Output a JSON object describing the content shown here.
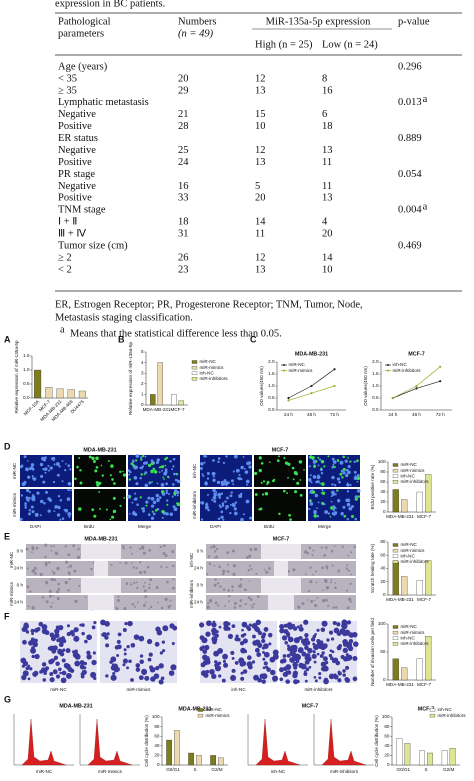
{
  "header": {
    "caption": "expression in BC patients."
  },
  "table": {
    "col1": [
      "Pathological",
      "parameters"
    ],
    "col2": [
      "Numbers",
      "(n = 49)"
    ],
    "group": "MiR-135a-5p expression",
    "high": "High (n = 25)",
    "low": "Low (n = 24)",
    "pvalue": "p-value",
    "rows": [
      {
        "label": "Age (years)",
        "p": "0.296"
      },
      {
        "label": "< 35",
        "numbers": "20",
        "high": "12",
        "low": "8"
      },
      {
        "label": "≥ 35",
        "numbers": "29",
        "high": "13",
        "low": "16"
      },
      {
        "label": "Lymphatic metastasis",
        "p": "0.013",
        "sup": "a"
      },
      {
        "label": "Negative",
        "numbers": "21",
        "high": "15",
        "low": "6"
      },
      {
        "label": "Positive",
        "numbers": "28",
        "high": "10",
        "low": "18"
      },
      {
        "label": "ER status",
        "p": "0.889"
      },
      {
        "label": "Negative",
        "numbers": "25",
        "high": "12",
        "low": "13"
      },
      {
        "label": "Positive",
        "numbers": "24",
        "high": "13",
        "low": "11"
      },
      {
        "label": "PR stage",
        "p": "0.054"
      },
      {
        "label": "Negative",
        "numbers": "16",
        "high": "5",
        "low": "11"
      },
      {
        "label": "Positive",
        "numbers": "33",
        "high": "20",
        "low": "13"
      },
      {
        "label": "TNM stage",
        "p": "0.004",
        "sup": "a"
      },
      {
        "label": "Ⅰ + Ⅱ",
        "numbers": "18",
        "high": "14",
        "low": "4"
      },
      {
        "label": "Ⅲ + Ⅳ",
        "numbers": "31",
        "high": "11",
        "low": "20"
      },
      {
        "label": "Tumor size (cm)",
        "p": "0.469"
      },
      {
        "label": "≥ 2",
        "numbers": "26",
        "high": "12",
        "low": "14"
      },
      {
        "label": "< 2",
        "numbers": "23",
        "high": "13",
        "low": "10"
      }
    ],
    "notes": [
      "ER, Estrogen Receptor; PR, Progesterone Receptor; TNM, Tumor, Node,",
      "Metastasis staging classification."
    ],
    "footnote": {
      "mark": "a",
      "text": "Means that the statistical difference less than 0.05."
    }
  },
  "figure": {
    "letters": [
      "A",
      "B",
      "C",
      "D",
      "E",
      "F",
      "G"
    ],
    "charts": [
      {
        "type": "bar",
        "ylabel": "Relative expression of miR-135a-5p",
        "categories": [
          "MCF-10A",
          "MCF-7",
          "MDA-MB-231",
          "MDA-MB-468",
          "DU4475"
        ],
        "values": [
          1.0,
          0.38,
          0.33,
          0.3,
          0.25
        ],
        "colors": [
          "#7d7d1e",
          "#ecd9b0",
          "#ecd9b0",
          "#ecd9b0",
          "#ecd9b0"
        ],
        "rotated_labels": true,
        "ylim": [
          0,
          1.5
        ],
        "yticks": [
          {
            "value": 0,
            "label": "0.0"
          },
          0.5,
          {
            "value": 1,
            "label": "1.0"
          },
          1.5
        ]
      },
      {
        "type": "bar",
        "ylabel": "Relative expression of miR-135a-5p",
        "categories": [
          "MDA-MB-231",
          "MCF-7"
        ],
        "series": [
          {
            "name": "miR-NC",
            "color": "#7d7d1e",
            "values": [
              1.0,
              null
            ]
          },
          {
            "name": "miR-mimics",
            "color": "#ecd9b0",
            "values": [
              4.0,
              null
            ]
          },
          {
            "name": "inh-NC",
            "color": "#ffffff",
            "values": [
              null,
              1.0
            ]
          },
          {
            "name": "miR-inhibitors",
            "color": "#dfe596",
            "values": [
              null,
              0.4
            ]
          }
        ],
        "ylim": [
          0,
          5
        ],
        "yticks": [
          0,
          1,
          2,
          3,
          4,
          5
        ]
      },
      {
        "type": "line",
        "title": "MDA-MB-231",
        "ylabel": "OD values(450 nm)",
        "categories": [
          "24 h",
          "48 h",
          "72 h"
        ],
        "series": [
          {
            "name": "miR-NC",
            "color": "#222222",
            "values": [
              0.5,
              1.0,
              1.7
            ]
          },
          {
            "name": "miR-mimics",
            "color": "#9aaa2a",
            "values": [
              0.4,
              0.7,
              1.0
            ]
          }
        ],
        "ylim": [
          0,
          2
        ],
        "yticks": [
          {
            "value": 0,
            "label": "0.0"
          },
          0.5,
          {
            "value": 1,
            "label": "1.0"
          },
          1.5,
          {
            "value": 2,
            "label": "2.0"
          }
        ]
      },
      {
        "type": "line",
        "title": "MCF-7",
        "ylabel": "OD values(450 nm)",
        "categories": [
          "24 h",
          "48 h",
          "72 h"
        ],
        "series": [
          {
            "name": "inh-NC",
            "color": "#222222",
            "values": [
              0.5,
              0.9,
              1.2
            ]
          },
          {
            "name": "miR-inhibitors",
            "color": "#9aaa2a",
            "values": [
              0.5,
              1.0,
              1.8
            ]
          }
        ],
        "ylim": [
          0,
          2
        ],
        "yticks": [
          {
            "value": 0,
            "label": "0.0"
          },
          0.5,
          {
            "value": 1,
            "label": "1.0"
          },
          1.5,
          {
            "value": 2,
            "label": "2.0"
          }
        ]
      },
      {
        "type": "bar",
        "ylabel": "BrdU positive rate (%)",
        "categories": [
          "MDA-MB-231",
          "MCF-7"
        ],
        "series": [
          {
            "name": "miR-NC",
            "color": "#7d7d1e",
            "values": [
              45,
              null
            ]
          },
          {
            "name": "miR-mimics",
            "color": "#ecd9b0",
            "values": [
              25,
              null
            ]
          },
          {
            "name": "inh-NC",
            "color": "#ffffff",
            "values": [
              null,
              40
            ]
          },
          {
            "name": "miR-inhibitors",
            "color": "#dfe596",
            "values": [
              null,
              75
            ]
          }
        ],
        "ylim": [
          0,
          100
        ],
        "yticks": [
          0,
          20,
          40,
          60,
          80,
          100
        ]
      },
      {
        "type": "bar",
        "ylabel": "Scratch healing rate (%)",
        "categories": [
          "MDA-MB-231",
          "MCF-7"
        ],
        "series": [
          {
            "name": "miR-NC",
            "color": "#7d7d1e",
            "values": [
              50,
              null
            ]
          },
          {
            "name": "miR-mimics",
            "color": "#ecd9b0",
            "values": [
              28,
              null
            ]
          },
          {
            "name": "inh-NC",
            "color": "#ffffff",
            "values": [
              null,
              22
            ]
          },
          {
            "name": "miR-inhibitors",
            "color": "#dfe596",
            "values": [
              null,
              52
            ]
          }
        ],
        "ylim": [
          0,
          80
        ],
        "yticks": [
          0,
          20,
          40,
          60,
          80
        ]
      },
      {
        "type": "bar",
        "ylabel": "Number of invasion cells per field",
        "categories": [
          "MDA-MB-231",
          "MCF-7"
        ],
        "series": [
          {
            "name": "miR-NC",
            "color": "#7d7d1e",
            "values": [
              38,
              null
            ]
          },
          {
            "name": "miR-mimics",
            "color": "#ecd9b0",
            "values": [
              22,
              null
            ]
          },
          {
            "name": "inh-NC",
            "color": "#ffffff",
            "values": [
              null,
              38
            ]
          },
          {
            "name": "miR-inhibitors",
            "color": "#dfe596",
            "values": [
              null,
              78
            ]
          }
        ],
        "ylim": [
          0,
          100
        ],
        "yticks": [
          0,
          50,
          100
        ]
      },
      {
        "type": "bar",
        "title": "MDA-MB-231",
        "ylabel": "Cell cycle distribution (%)",
        "categories": [
          "G0/G1",
          "S",
          "G2/M"
        ],
        "series": [
          {
            "name": "miR-NC",
            "color": "#7d7d1e",
            "values": [
              52,
              25,
              20
            ]
          },
          {
            "name": "miR-mimics",
            "color": "#ecd9b0",
            "values": [
              72,
              20,
              15
            ]
          }
        ],
        "ylim": [
          0,
          100
        ],
        "yticks": [
          0,
          20,
          40,
          60,
          80,
          100
        ]
      },
      {
        "type": "bar",
        "title": "MCF-7",
        "ylabel": "Cell cycle distribution (%)",
        "categories": [
          "G0/G1",
          "S",
          "G2/M"
        ],
        "series": [
          {
            "name": "inh-NC",
            "color": "#ffffff",
            "values": [
              55,
              30,
              30
            ]
          },
          {
            "name": "miR-inhibitors",
            "color": "#dfe596",
            "values": [
              45,
              25,
              35
            ]
          }
        ],
        "ylim": [
          0,
          100
        ],
        "yticks": [
          0,
          20,
          40,
          60,
          80,
          100
        ]
      }
    ],
    "images": {
      "D": {
        "titles": [
          "MDA-MB-231",
          "MCF-7"
        ],
        "columns": [
          "DAPI",
          "BrdU",
          "Merge"
        ],
        "rows_left": [
          "miR-NC",
          "miR-mimics"
        ],
        "rows_right": [
          "inh-NC",
          "miR-inhibitors"
        ]
      },
      "E": {
        "titles": [
          "MDA-MB-231",
          "MCF-7"
        ],
        "rows_left": [
          "miR-NC",
          "miR-mimics"
        ],
        "rows_right": [
          "inh-NC",
          "miR-inhibitors"
        ],
        "times": [
          "0 h",
          "24 h"
        ]
      },
      "F": {
        "labels": [
          "miR-NC",
          "miR-mimics",
          "inh-NC",
          "miR-inhibitors"
        ]
      },
      "G": {
        "titles": [
          "MDA-MB-231",
          "MCF-7"
        ],
        "labels": [
          "miR-NC",
          "miR-mimics",
          "inh-NC",
          "miR-inhibitors"
        ]
      }
    }
  }
}
